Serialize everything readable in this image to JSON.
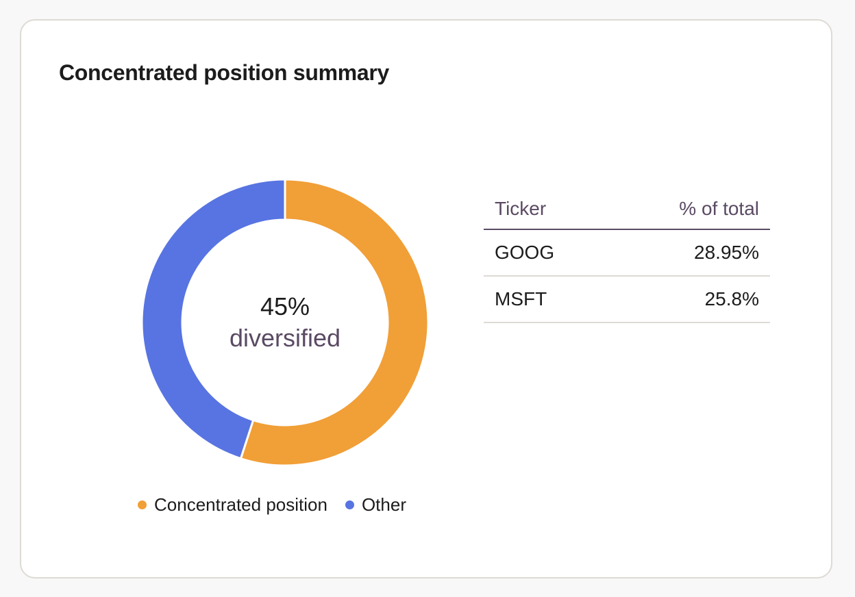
{
  "card": {
    "title": "Concentrated position summary"
  },
  "chart_data": {
    "type": "pie",
    "variant": "donut",
    "title": "Concentrated position summary",
    "center_value": "45%",
    "center_label": "diversified",
    "slices": [
      {
        "name": "Concentrated position",
        "value": 55,
        "color": "#f19f37"
      },
      {
        "name": "Other",
        "value": 45,
        "color": "#5874e2"
      }
    ],
    "legend": {
      "placement": "bottom",
      "items": [
        {
          "label": "Concentrated position",
          "color": "#f19f37"
        },
        {
          "label": "Other",
          "color": "#5874e2"
        }
      ]
    }
  },
  "table": {
    "headers": {
      "ticker": "Ticker",
      "pct": "% of total"
    },
    "rows": [
      {
        "ticker": "GOOG",
        "pct": "28.95%"
      },
      {
        "ticker": "MSFT",
        "pct": "25.8%"
      }
    ]
  }
}
